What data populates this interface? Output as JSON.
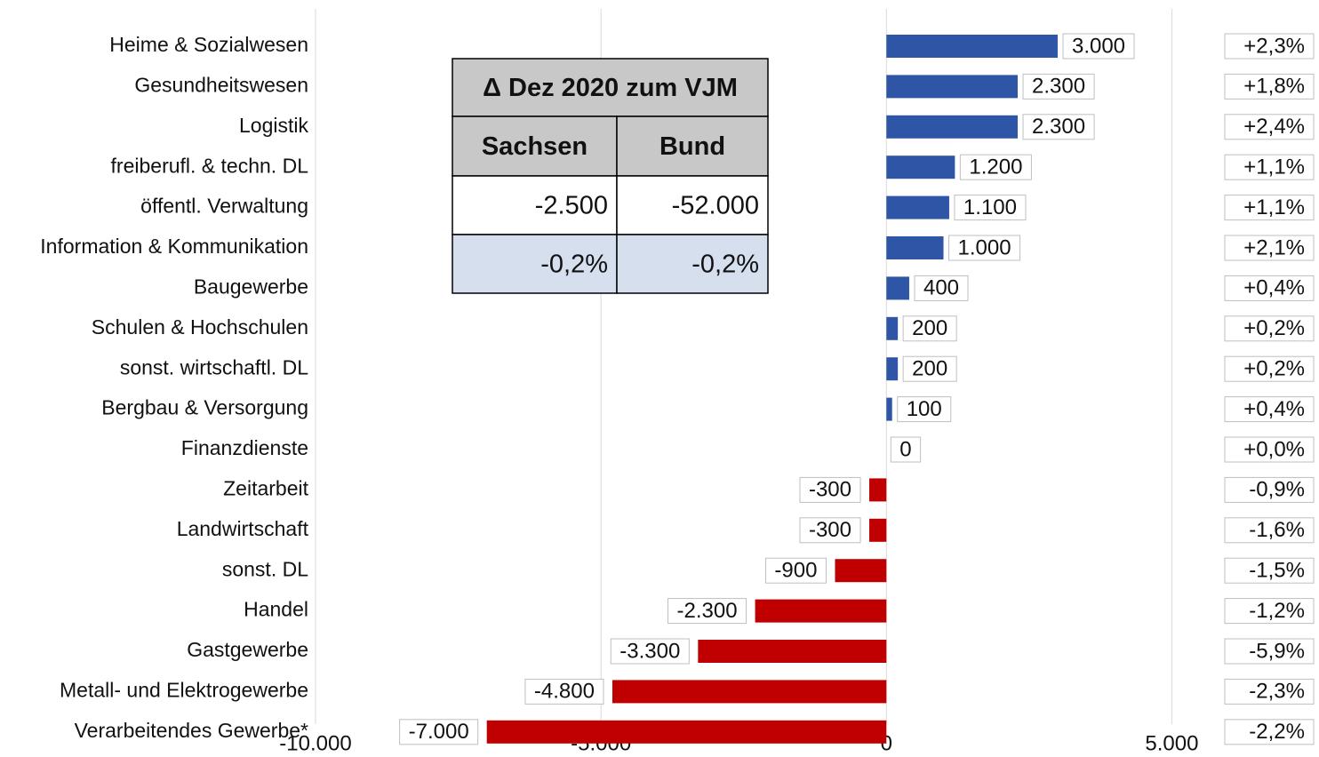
{
  "chart_data": {
    "type": "bar",
    "orientation": "horizontal",
    "categories": [
      "Heime & Sozialwesen",
      "Gesundheitswesen",
      "Logistik",
      "freiberufl. & techn. DL",
      "öffentl. Verwaltung",
      "Information & Kommunikation",
      "Baugewerbe",
      "Schulen & Hochschulen",
      "sonst. wirtschaftl. DL",
      "Bergbau & Versorgung",
      "Finanzdienste",
      "Zeitarbeit",
      "Landwirtschaft",
      "sonst. DL",
      "Handel",
      "Gastgewerbe",
      "Metall- und Elektrogewerbe",
      "Verarbeitendes Gewerbe*"
    ],
    "values": [
      3000,
      2300,
      2300,
      1200,
      1100,
      1000,
      400,
      200,
      200,
      100,
      0,
      -300,
      -300,
      -900,
      -2300,
      -3300,
      -4800,
      -7000
    ],
    "value_labels": [
      "3.000",
      "2.300",
      "2.300",
      "1.200",
      "1.100",
      "1.000",
      "400",
      "200",
      "200",
      "100",
      "0",
      "-300",
      "-300",
      "-900",
      "-2.300",
      "-3.300",
      "-4.800",
      "-7.000"
    ],
    "percent_labels": [
      "+2,3%",
      "+1,8%",
      "+2,4%",
      "+1,1%",
      "+1,1%",
      "+2,1%",
      "+0,4%",
      "+0,2%",
      "+0,2%",
      "+0,4%",
      "+0,0%",
      "-0,9%",
      "-1,6%",
      "-1,5%",
      "-1,2%",
      "-5,9%",
      "-2,3%",
      "-2,2%"
    ],
    "positive_color": "#2f56a6",
    "negative_color": "#c00000",
    "xlim": [
      -10000,
      7500
    ],
    "xticks": [
      {
        "value": -10000,
        "label": "-10.000"
      },
      {
        "value": -5000,
        "label": "-5.000"
      },
      0,
      {
        "value": 5000,
        "label": "5.000"
      }
    ],
    "grid": true,
    "inset_table": {
      "title": "Δ Dez 2020 zum VJM",
      "headers": [
        "Sachsen",
        "Bund"
      ],
      "rows": [
        [
          "-2.500",
          "-52.000"
        ],
        [
          "-0,2%",
          "-0,2%"
        ]
      ]
    }
  }
}
